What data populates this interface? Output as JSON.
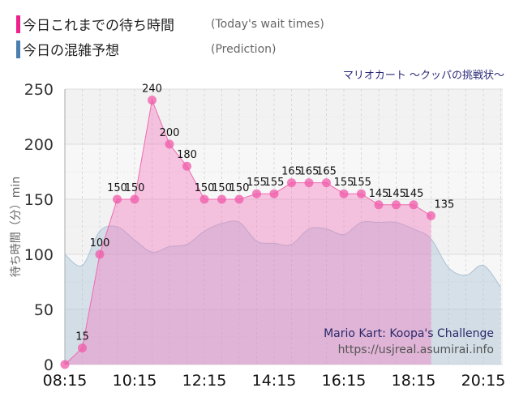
{
  "legend": [
    {
      "label": "今日これまでの待ち時間",
      "en": "(Today's wait times)",
      "color": "#f0208c"
    },
    {
      "label": "今日の混雑予想",
      "en": "(Prediction)",
      "color": "#4a7fb0"
    }
  ],
  "chart_data": {
    "type": "area",
    "title": "マリオカート ～クッパの挑戦状～",
    "ylabel": "待ち時間（分）min",
    "ylim": [
      0,
      250
    ],
    "yticks": [
      "0",
      "50",
      "100",
      "150",
      "200",
      "250"
    ],
    "xticks": [
      "08:15",
      "10:15",
      "12:15",
      "14:15",
      "16:15",
      "18:15",
      "20:15"
    ],
    "grid": true,
    "legend_position": "top-left",
    "series": [
      {
        "name": "今日これまでの待ち時間",
        "color": "#f06ab0",
        "x": [
          "08:15",
          "08:45",
          "09:15",
          "09:45",
          "10:15",
          "10:45",
          "11:15",
          "11:45",
          "12:15",
          "12:45",
          "13:15",
          "13:45",
          "14:15",
          "14:45",
          "15:15",
          "15:45",
          "16:15",
          "16:45",
          "17:15",
          "17:45",
          "18:15",
          "18:45"
        ],
        "values": [
          0,
          15,
          100,
          150,
          150,
          240,
          200,
          180,
          150,
          150,
          150,
          155,
          155,
          165,
          165,
          165,
          155,
          155,
          145,
          145,
          145,
          135
        ]
      },
      {
        "name": "今日の混雑予想",
        "color": "#9fb8cc",
        "x": [
          "08:15",
          "08:45",
          "09:15",
          "09:45",
          "10:15",
          "10:45",
          "11:15",
          "11:45",
          "12:15",
          "12:45",
          "13:15",
          "13:45",
          "14:15",
          "14:45",
          "15:15",
          "15:45",
          "16:15",
          "16:45",
          "17:15",
          "17:45",
          "18:15",
          "18:45",
          "19:15",
          "19:45",
          "20:15",
          "20:45"
        ],
        "values": [
          100,
          90,
          121,
          125,
          113,
          102,
          107,
          109,
          121,
          128,
          129,
          112,
          110,
          109,
          123,
          123,
          118,
          129,
          129,
          129,
          123,
          114,
          88,
          81,
          90,
          70
        ]
      }
    ]
  },
  "watermark": {
    "line1": "Mario Kart: Koopa's Challenge",
    "line2": "https://usjreal.asumirai.info"
  }
}
